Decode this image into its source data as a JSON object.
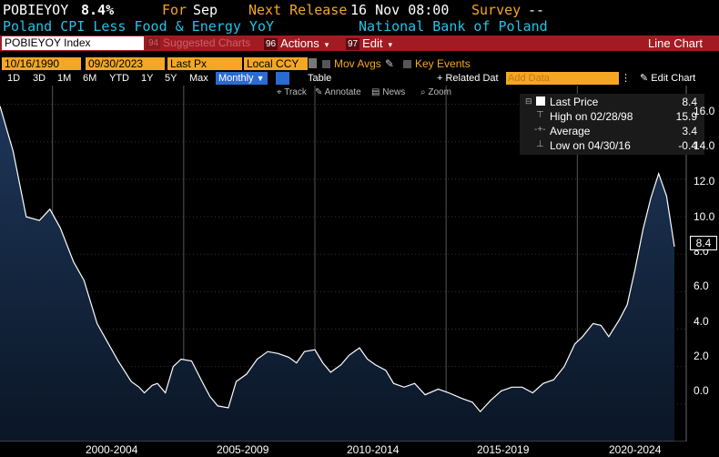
{
  "header": {
    "ticker": "POBIEYOY",
    "last_value": "8.4%",
    "for_label": "For",
    "for_value": "Sep",
    "next_release_label": "Next Release",
    "next_release_value": "16 Nov 08:00",
    "survey_label": "Survey",
    "survey_value": "--",
    "description": "Poland CPI Less Food & Energy YoY",
    "source": "National Bank of Poland"
  },
  "toolbar": {
    "security": "POBIEYOY Index",
    "suggested_charts": "Suggested Charts",
    "actions_num": "96",
    "actions_label": "Actions",
    "edit_num": "97",
    "edit_label": "Edit",
    "chart_type_label": "Line Chart"
  },
  "settings": {
    "start_date": "10/16/1990",
    "end_date": "09/30/2023",
    "field": "Last Px",
    "currency": "Local CCY",
    "mov_avgs_label": "Mov Avgs",
    "key_events_label": "Key Events"
  },
  "periods": {
    "items": [
      "1D",
      "3D",
      "1M",
      "6M",
      "YTD",
      "1Y",
      "5Y",
      "Max"
    ],
    "frequency": "Monthly",
    "table_label": "Table",
    "related_data_label": "Related Dat",
    "add_data_placeholder": "Add Data",
    "edit_chart_label": "Edit Chart"
  },
  "tools": {
    "track": "Track",
    "annotate": "Annotate",
    "news": "News",
    "zoom": "Zoom"
  },
  "legend": {
    "last_price_label": "Last Price",
    "last_price_value": "8.4",
    "high_label": "High on 02/28/98",
    "high_value": "15.9",
    "average_label": "Average",
    "average_value": "3.4",
    "low_label": "Low on 04/30/16",
    "low_value": "-0.4"
  },
  "colors": {
    "background": "#000000",
    "area_fill_top": "#1d3658",
    "area_fill_bottom": "#0b1626",
    "line": "#ffffff",
    "accent_orange": "#f5a623",
    "accent_cyan": "#22c3e6",
    "toolbar_red": "#a31b22"
  },
  "chart_data": {
    "type": "area",
    "series": [
      {
        "name": "POBIEYOY Index",
        "x": [
          1998.0,
          1998.5,
          1999.0,
          1999.5,
          1999.9,
          2000.3,
          2000.8,
          2001.2,
          2001.7,
          2002.1,
          2002.5,
          2003.0,
          2003.3,
          2003.5,
          2003.8,
          2004.0,
          2004.3,
          2004.6,
          2004.9,
          2005.3,
          2005.7,
          2006.0,
          2006.3,
          2006.7,
          2007.0,
          2007.4,
          2007.8,
          2008.2,
          2008.6,
          2009.0,
          2009.3,
          2009.6,
          2010.0,
          2010.3,
          2010.6,
          2011.0,
          2011.3,
          2011.7,
          2012.0,
          2012.3,
          2012.7,
          2013.0,
          2013.4,
          2013.8,
          2014.2,
          2014.7,
          2015.1,
          2015.6,
          2016.0,
          2016.3,
          2016.7,
          2017.1,
          2017.5,
          2017.9,
          2018.3,
          2018.7,
          2019.1,
          2019.5,
          2019.9,
          2020.2,
          2020.6,
          2020.9,
          2021.2,
          2021.6,
          2021.9,
          2022.2,
          2022.5,
          2022.8,
          2023.1,
          2023.4,
          2023.7
        ],
        "values": [
          15.9,
          13.5,
          10.0,
          9.8,
          10.4,
          9.4,
          7.6,
          6.6,
          4.3,
          3.3,
          2.3,
          1.2,
          0.9,
          0.6,
          1.0,
          1.1,
          0.6,
          2.0,
          2.4,
          2.3,
          1.2,
          0.4,
          -0.1,
          -0.2,
          1.2,
          1.6,
          2.4,
          2.8,
          2.7,
          2.5,
          2.2,
          2.8,
          2.9,
          2.2,
          1.7,
          2.1,
          2.6,
          3.0,
          2.4,
          2.1,
          1.8,
          1.1,
          0.9,
          1.1,
          0.5,
          0.8,
          0.6,
          0.3,
          0.1,
          -0.4,
          0.2,
          0.7,
          0.9,
          0.9,
          0.6,
          1.1,
          1.3,
          2.0,
          3.2,
          3.6,
          4.3,
          4.2,
          3.6,
          4.5,
          5.3,
          7.2,
          9.3,
          11.0,
          12.3,
          11.1,
          8.4
        ]
      }
    ],
    "ylim": [
      -2,
      17
    ],
    "xlim": [
      1998.0,
      2024.15
    ],
    "yticks": [
      0.0,
      2.0,
      4.0,
      6.0,
      8.0,
      10.0,
      12.0,
      14.0,
      16.0
    ],
    "ytick_labels": [
      "0.0",
      "2.0",
      "4.0",
      "6.0",
      "8.0",
      "10.0",
      "12.0",
      "14.0",
      "16.0"
    ],
    "xtick_labels": [
      "2000-2004",
      "2005-2009",
      "2010-2014",
      "2015-2019",
      "2020-2024"
    ],
    "last_label": "8.4",
    "grid": true,
    "legend_position": "top-right"
  }
}
